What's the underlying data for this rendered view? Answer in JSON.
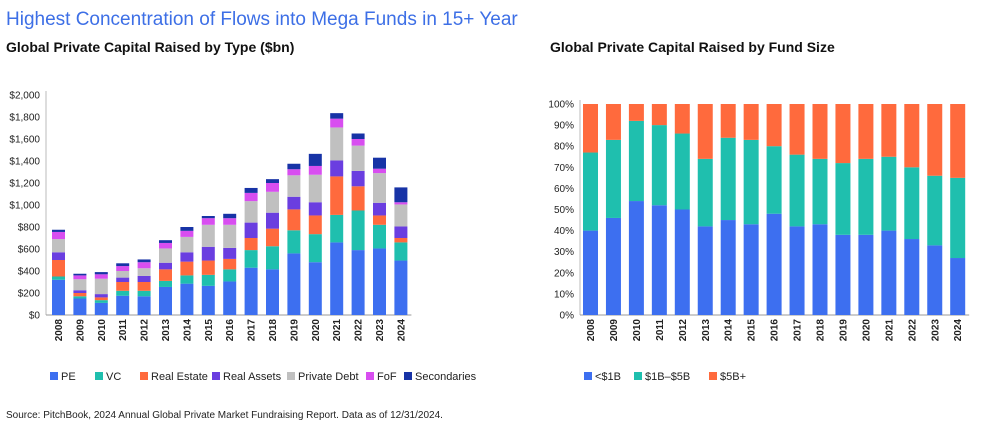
{
  "headline": "Highest Concentration of Flows into Mega Funds in 15+ Year",
  "source": "Source: PitchBook, 2024 Annual Global Private Market Fundraising Report. Data as of 12/31/2024.",
  "chart_data": [
    {
      "type": "bar",
      "stacked": true,
      "title": "Global Private Capital Raised by Type ($bn)",
      "categories": [
        "2008",
        "2009",
        "2010",
        "2011",
        "2012",
        "2013",
        "2014",
        "2015",
        "2016",
        "2017",
        "2018",
        "2019",
        "2020",
        "2021",
        "2022",
        "2023",
        "2024"
      ],
      "ylim": [
        0,
        2000
      ],
      "yticks": [
        "$0",
        "$200",
        "$400",
        "$600",
        "$800",
        "$1,000",
        "$1,200",
        "$1,400",
        "$1,600",
        "$1,800",
        "$2,000"
      ],
      "legend_position": "bottom",
      "series": [
        {
          "name": "PE",
          "color": "#3d6ff0",
          "values": [
            320,
            150,
            110,
            175,
            170,
            255,
            285,
            265,
            305,
            430,
            415,
            560,
            480,
            660,
            590,
            605,
            495
          ]
        },
        {
          "name": "VC",
          "color": "#1fbfae",
          "values": [
            30,
            20,
            25,
            45,
            50,
            55,
            75,
            100,
            110,
            160,
            210,
            210,
            255,
            250,
            360,
            215,
            165
          ]
        },
        {
          "name": "Real Estate",
          "color": "#ff6a3d",
          "values": [
            150,
            30,
            25,
            80,
            80,
            105,
            125,
            130,
            95,
            110,
            160,
            190,
            170,
            350,
            220,
            85,
            40
          ]
        },
        {
          "name": "Real Assets",
          "color": "#6a3ee0",
          "values": [
            70,
            25,
            30,
            40,
            55,
            60,
            85,
            125,
            100,
            140,
            145,
            115,
            120,
            145,
            140,
            115,
            105
          ]
        },
        {
          "name": "Private Debt",
          "color": "#c0c0c0",
          "values": [
            120,
            100,
            140,
            60,
            70,
            130,
            140,
            200,
            210,
            195,
            190,
            195,
            250,
            300,
            230,
            270,
            200
          ]
        },
        {
          "name": "FoF",
          "color": "#d84ef0",
          "values": [
            65,
            35,
            40,
            45,
            55,
            50,
            55,
            60,
            60,
            75,
            80,
            55,
            80,
            80,
            60,
            40,
            20
          ]
        },
        {
          "name": "Secondaries",
          "color": "#1733a6",
          "values": [
            20,
            15,
            20,
            25,
            25,
            25,
            35,
            20,
            40,
            45,
            35,
            50,
            110,
            50,
            50,
            100,
            135
          ]
        }
      ]
    },
    {
      "type": "bar",
      "stacked": true,
      "title": "Global Private Capital Raised by Fund Size",
      "categories": [
        "2008",
        "2009",
        "2010",
        "2011",
        "2012",
        "2013",
        "2014",
        "2015",
        "2016",
        "2017",
        "2018",
        "2019",
        "2020",
        "2021",
        "2022",
        "2023",
        "2024"
      ],
      "ylim": [
        0,
        100
      ],
      "yticks": [
        "0%",
        "10%",
        "20%",
        "30%",
        "40%",
        "50%",
        "60%",
        "70%",
        "80%",
        "90%",
        "100%"
      ],
      "legend_position": "bottom",
      "series": [
        {
          "name": "<$1B",
          "color": "#3d6ff0",
          "values": [
            40,
            46,
            54,
            52,
            50,
            42,
            45,
            43,
            48,
            42,
            43,
            38,
            38,
            40,
            36,
            33,
            27
          ]
        },
        {
          "name": "$1B–$5B",
          "color": "#1fbfae",
          "values": [
            37,
            37,
            38,
            38,
            36,
            32,
            39,
            40,
            32,
            34,
            31,
            34,
            36,
            35,
            34,
            33,
            38
          ]
        },
        {
          "name": "$5B+",
          "color": "#ff6a3d",
          "values": [
            23,
            17,
            8,
            10,
            14,
            26,
            16,
            17,
            20,
            24,
            26,
            28,
            26,
            25,
            30,
            34,
            35
          ]
        }
      ]
    }
  ]
}
